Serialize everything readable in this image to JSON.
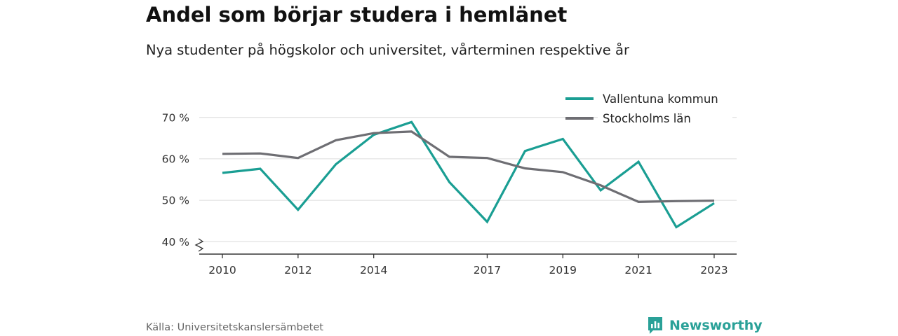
{
  "header": {
    "title": "Andel som börjar studera i hemlänet",
    "subtitle": "Nya studenter på högskolor och universitet, vårterminen respektive år"
  },
  "footer": {
    "source": "Källa: Universitetskanslersämbetet",
    "brand": "Newsworthy",
    "brand_color": "#2aa198",
    "brand_icon": "bar-chart-speech-bubble-icon"
  },
  "chart_data": {
    "type": "line",
    "x": [
      2010,
      2011,
      2012,
      2013,
      2014,
      2015,
      2016,
      2017,
      2018,
      2019,
      2020,
      2021,
      2022,
      2023
    ],
    "x_tick_labels": [
      "2010",
      "2012",
      "2014",
      "2017",
      "2019",
      "2021",
      "2023"
    ],
    "y_ticks": [
      40,
      50,
      60,
      70
    ],
    "y_tick_labels": [
      "40 %",
      "50 %",
      "60 %",
      "70 %"
    ],
    "ylim": [
      37,
      73
    ],
    "y_axis_break": true,
    "grid": true,
    "legend_position": "top-right",
    "series": [
      {
        "name": "Vallentuna kommun",
        "color": "#1a9e93",
        "values": [
          56.6,
          57.6,
          47.7,
          58.7,
          65.8,
          68.9,
          54.4,
          44.8,
          61.9,
          64.8,
          52.4,
          59.3,
          43.5,
          49.3
        ]
      },
      {
        "name": "Stockholms län",
        "color": "#6e6e73",
        "values": [
          61.2,
          61.3,
          60.2,
          64.5,
          66.2,
          66.6,
          60.5,
          60.2,
          57.7,
          56.8,
          53.6,
          49.6,
          49.8,
          49.9
        ]
      }
    ]
  }
}
